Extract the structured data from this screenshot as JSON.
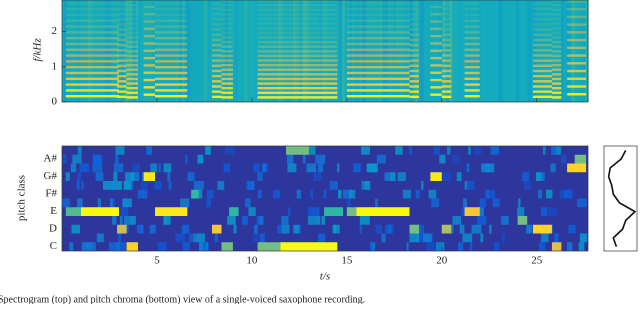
{
  "chart_data": [
    {
      "type": "spectrogram",
      "ylabel": "f/kHz",
      "xlim": [
        0,
        27.7
      ],
      "xticks": [
        5,
        10,
        15,
        20,
        25
      ],
      "ylim": [
        0,
        2.9
      ],
      "yticks": [
        0,
        1,
        2
      ],
      "notes": [
        {
          "start": 0.2,
          "end": 1.0,
          "f0": 0.165
        },
        {
          "start": 1.0,
          "end": 3.0,
          "f0": 0.165
        },
        {
          "start": 2.9,
          "end": 3.4,
          "f0": 0.147
        },
        {
          "start": 3.4,
          "end": 4.0,
          "f0": 0.131
        },
        {
          "start": 4.3,
          "end": 4.9,
          "f0": 0.208
        },
        {
          "start": 4.9,
          "end": 6.6,
          "f0": 0.165
        },
        {
          "start": 7.9,
          "end": 8.4,
          "f0": 0.147
        },
        {
          "start": 8.4,
          "end": 9.0,
          "f0": 0.131
        },
        {
          "start": 10.3,
          "end": 11.5,
          "f0": 0.131
        },
        {
          "start": 11.5,
          "end": 14.5,
          "f0": 0.131
        },
        {
          "start": 15.0,
          "end": 15.5,
          "f0": 0.165
        },
        {
          "start": 15.5,
          "end": 18.3,
          "f0": 0.165
        },
        {
          "start": 18.3,
          "end": 18.8,
          "f0": 0.147
        },
        {
          "start": 19.4,
          "end": 20.0,
          "f0": 0.208
        },
        {
          "start": 20.0,
          "end": 20.5,
          "f0": 0.147
        },
        {
          "start": 21.2,
          "end": 22.0,
          "f0": 0.165
        },
        {
          "start": 24.8,
          "end": 25.8,
          "f0": 0.147
        },
        {
          "start": 25.8,
          "end": 26.3,
          "f0": 0.131
        },
        {
          "start": 26.6,
          "end": 27.6,
          "f0": 0.22
        }
      ]
    },
    {
      "type": "heatmap",
      "ylabel": "pitch class",
      "xlabel": "t/s",
      "xlim": [
        0,
        27.7
      ],
      "xticks": [
        5,
        10,
        15,
        20,
        25
      ],
      "categories": [
        "C",
        null,
        "D",
        null,
        "E",
        null,
        "F#",
        null,
        "G#",
        null,
        "A#",
        null
      ],
      "cells": [
        {
          "start": 0.2,
          "end": 1.0,
          "row": 4,
          "value": 0.55
        },
        {
          "start": 1.0,
          "end": 3.0,
          "row": 4,
          "value": 1.0
        },
        {
          "start": 2.9,
          "end": 3.4,
          "row": 2,
          "value": 0.75
        },
        {
          "start": 3.4,
          "end": 4.0,
          "row": 0,
          "value": 0.9
        },
        {
          "start": 4.3,
          "end": 4.9,
          "row": 8,
          "value": 0.95
        },
        {
          "start": 4.9,
          "end": 6.6,
          "row": 4,
          "value": 0.95
        },
        {
          "start": 6.8,
          "end": 7.2,
          "row": 6,
          "value": 0.5
        },
        {
          "start": 7.9,
          "end": 8.4,
          "row": 2,
          "value": 0.85
        },
        {
          "start": 8.4,
          "end": 9.0,
          "row": 0,
          "value": 0.6
        },
        {
          "start": 8.8,
          "end": 9.3,
          "row": 4,
          "value": 0.5
        },
        {
          "start": 10.3,
          "end": 11.5,
          "row": 0,
          "value": 0.6
        },
        {
          "start": 11.5,
          "end": 14.5,
          "row": 0,
          "value": 1.0
        },
        {
          "start": 11.8,
          "end": 13.0,
          "row": 11,
          "value": 0.6
        },
        {
          "start": 13.8,
          "end": 14.8,
          "row": 4,
          "value": 0.5
        },
        {
          "start": 15.0,
          "end": 15.5,
          "row": 4,
          "value": 0.6
        },
        {
          "start": 15.5,
          "end": 18.3,
          "row": 4,
          "value": 1.0
        },
        {
          "start": 18.3,
          "end": 18.8,
          "row": 2,
          "value": 0.6
        },
        {
          "start": 19.4,
          "end": 20.0,
          "row": 8,
          "value": 0.95
        },
        {
          "start": 20.0,
          "end": 20.5,
          "row": 2,
          "value": 0.7
        },
        {
          "start": 21.2,
          "end": 22.0,
          "row": 4,
          "value": 0.85
        },
        {
          "start": 24.0,
          "end": 24.5,
          "row": 3,
          "value": 0.6
        },
        {
          "start": 24.8,
          "end": 25.8,
          "row": 2,
          "value": 0.9
        },
        {
          "start": 25.8,
          "end": 26.3,
          "row": 0,
          "value": 0.8
        },
        {
          "start": 26.6,
          "end": 27.6,
          "row": 9,
          "value": 0.9
        },
        {
          "start": 27.0,
          "end": 27.6,
          "row": 10,
          "value": 0.6
        }
      ]
    },
    {
      "type": "line",
      "xlim": [
        0,
        1
      ],
      "values": [
        0.4,
        0.3,
        0.6,
        0.7,
        1.0,
        0.5,
        0.3,
        0.25,
        0.15,
        0.2,
        0.55,
        0.7
      ]
    }
  ],
  "caption": "Spectrogram (top) and pitch chroma (bottom) view of a single-voiced saxophone recording."
}
